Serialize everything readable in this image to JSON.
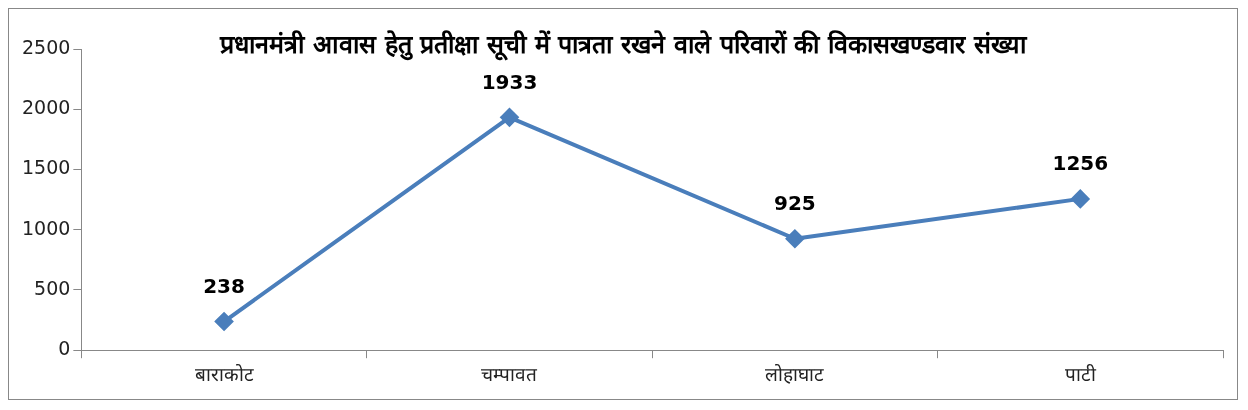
{
  "chart_data": {
    "type": "line",
    "title": "प्रधानमंत्री आवास हेतु प्रतीक्षा सूची में पात्रता रखने वाले परिवारों की विकासखण्डवार संख्या",
    "categories": [
      "बाराकोट",
      "चम्पावत",
      "लोहाघाट",
      "पाटी"
    ],
    "values": [
      238,
      1933,
      925,
      1256
    ],
    "color": "#4a7ebb",
    "ylim": [
      0,
      2500
    ],
    "yticks": [
      0,
      500,
      1000,
      1500,
      2000,
      2500
    ],
    "grid": false,
    "legend": false,
    "marker": "diamond",
    "line_style": "solid",
    "data_labels": true
  }
}
